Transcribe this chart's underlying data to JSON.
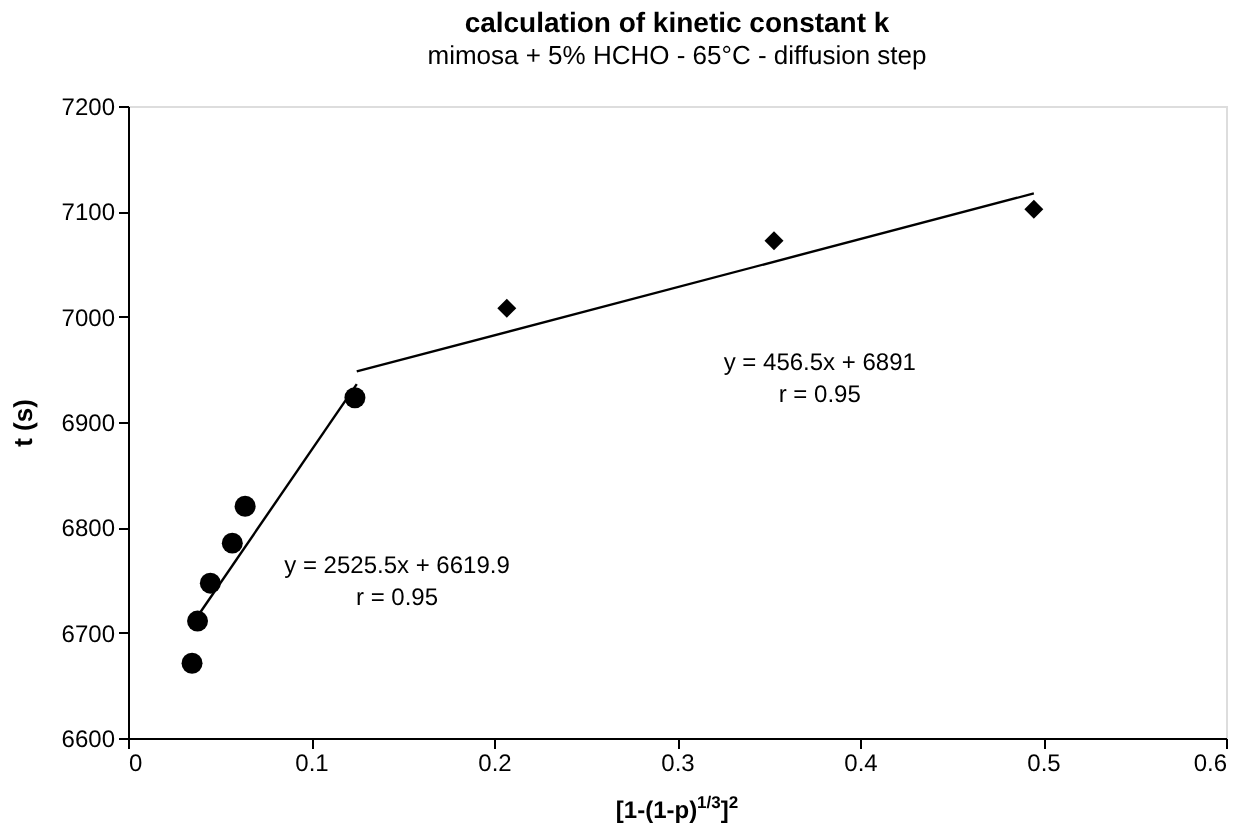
{
  "chart_data": {
    "type": "scatter",
    "title": "calculation of kinetic constant k",
    "subtitle": "mimosa + 5% HCHO - 65°C - diffusion step",
    "xlabel": "[1-(1-p)$^{1/3}$]$^{2}$",
    "ylabel": "t (s)",
    "series": [
      {
        "marker": "circle",
        "color": "#000000",
        "x": [
          0.035,
          0.038,
          0.045,
          0.057,
          0.064,
          0.124
        ],
        "values": [
          6671,
          6711,
          6747,
          6785,
          6820,
          6923
        ]
      },
      {
        "marker": "diamond",
        "color": "#000000",
        "x": [
          0.207,
          0.353,
          0.495
        ],
        "values": [
          7008,
          7072,
          7102
        ]
      },
      {
        "type": "line",
        "marker": "none",
        "color": "#000000",
        "x": [
          0.037,
          0.125
        ],
        "values": [
          6713,
          6936
        ]
      },
      {
        "type": "line",
        "marker": "none",
        "color": "#000000",
        "x": [
          0.125,
          0.495
        ],
        "values": [
          6948,
          7117
        ]
      }
    ],
    "annotations": [
      "y = 2525.5x + 6619.9\nr = 0.95",
      "y = 456.5x + 6891\nr = 0.95"
    ],
    "xlim": [
      0,
      0.6
    ],
    "xticks": [
      0,
      0.1,
      0.2,
      0.3,
      0.4,
      0.5,
      0.6
    ],
    "ylim": [
      6600,
      7200
    ],
    "yticks": [
      6600,
      6700,
      6800,
      6900,
      7000,
      7100,
      7200
    ],
    "grid": false
  }
}
